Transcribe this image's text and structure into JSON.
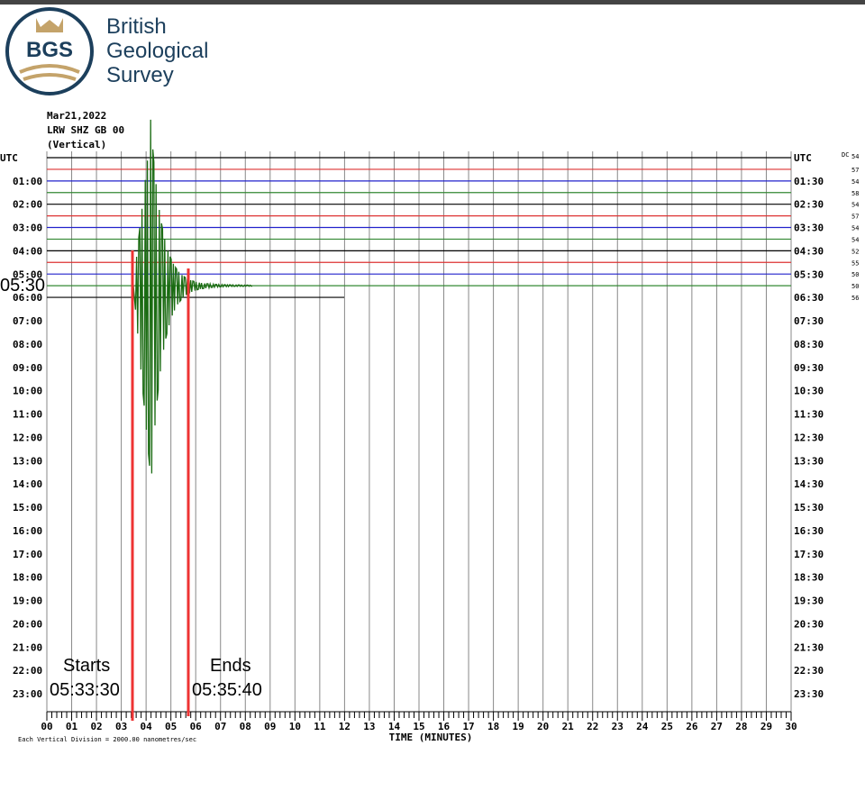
{
  "logo": {
    "mark": "BGS",
    "name_lines": [
      "British",
      "Geological",
      "Survey"
    ]
  },
  "header": [
    "Mar21,2022",
    "LRW SHZ GB 00",
    "(Vertical)"
  ],
  "left_labels": [
    "UTC",
    "01:00",
    "02:00",
    "03:00",
    "04:00",
    "05:00",
    "06:00",
    "07:00",
    "08:00",
    "09:00",
    "10:00",
    "11:00",
    "12:00",
    "13:00",
    "14:00",
    "15:00",
    "16:00",
    "17:00",
    "18:00",
    "19:00",
    "20:00",
    "21:00",
    "22:00",
    "23:00"
  ],
  "right_labels": [
    "UTC",
    "01:30",
    "02:30",
    "03:30",
    "04:30",
    "05:30",
    "06:30",
    "07:30",
    "08:30",
    "09:30",
    "10:30",
    "11:30",
    "12:30",
    "13:30",
    "14:30",
    "15:30",
    "16:30",
    "17:30",
    "18:30",
    "19:30",
    "20:30",
    "21:30",
    "22:30",
    "23:30"
  ],
  "dc_header": "DC",
  "dc_values": [
    "54",
    "57",
    "54",
    "58",
    "54",
    "57",
    "54",
    "54",
    "52",
    "55",
    "50",
    "50",
    "56"
  ],
  "x_ticks": [
    "00",
    "01",
    "02",
    "03",
    "04",
    "05",
    "06",
    "07",
    "08",
    "09",
    "10",
    "11",
    "12",
    "13",
    "14",
    "15",
    "16",
    "17",
    "18",
    "19",
    "20",
    "21",
    "22",
    "23",
    "24",
    "25",
    "26",
    "27",
    "28",
    "29",
    "30"
  ],
  "x_axis_title": "TIME (MINUTES)",
  "footer": "Each Vertical Division = 2000.00 nanometres/sec",
  "overlay_label": "05:30",
  "annotations": {
    "start_label": "Starts",
    "start_time": "05:33:30",
    "end_label": "Ends",
    "end_time": "05:35:40"
  }
}
